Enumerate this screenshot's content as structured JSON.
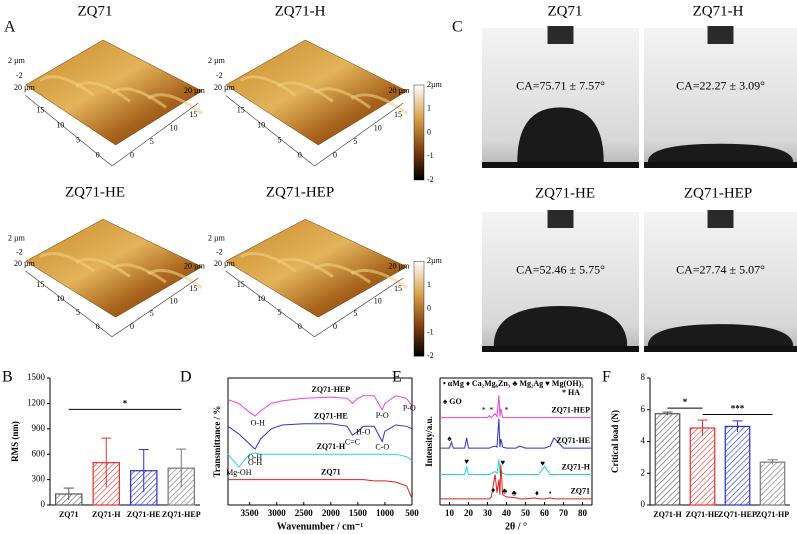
{
  "panels": {
    "A": {
      "letter": "A",
      "images": [
        {
          "title": "ZQ71"
        },
        {
          "title": "ZQ71-H"
        },
        {
          "title": "ZQ71-HE"
        },
        {
          "title": "ZQ71-HEP"
        }
      ],
      "z_top": "2 µm",
      "z_bottom": "-2",
      "x_end": "20 µm",
      "ticks": [
        "15",
        "10",
        "5",
        "0"
      ],
      "colorbar_ticks": [
        "2µm",
        "1",
        "0",
        "-1",
        "-2"
      ]
    },
    "C": {
      "letter": "C",
      "images": [
        {
          "title": "ZQ71",
          "ca": "CA=75.71 ± 7.57°"
        },
        {
          "title": "ZQ71-H",
          "ca": "CA=22.27 ± 3.09°"
        },
        {
          "title": "ZQ71-HE",
          "ca": "CA=52.46 ± 5.75°"
        },
        {
          "title": "ZQ71-HEP",
          "ca": "CA=27.74 ± 5.07°"
        }
      ]
    }
  },
  "chart_data": [
    {
      "type": "bar",
      "panel": "B",
      "ylabel": "RMS (nm)",
      "categories": [
        "ZQ71",
        "ZQ71-H",
        "ZQ71-HE",
        "ZQ71-HEP"
      ],
      "values": [
        130,
        500,
        405,
        435
      ],
      "errors": [
        70,
        290,
        250,
        225
      ],
      "colors": [
        "#555555",
        "#e8302a",
        "#2430d8",
        "#777777"
      ],
      "ylim": [
        0,
        1500
      ],
      "yticks": [
        0,
        300,
        600,
        900,
        1200,
        1500
      ],
      "significance": [
        {
          "from": 0,
          "to": 3,
          "y": 1130,
          "label": "*"
        }
      ]
    },
    {
      "type": "line",
      "panel": "D",
      "ylabel": "Transmittance / %",
      "xlabel": "Wavenumber / cm⁻¹",
      "x": [
        3900,
        3700,
        3500,
        3400,
        3300,
        3100,
        2900,
        2500,
        2000,
        1700,
        1600,
        1500,
        1400,
        1200,
        1050,
        1000,
        800,
        600,
        500
      ],
      "series": [
        {
          "name": "ZQ71-HEP",
          "color": "#f040e0",
          "values": [
            83,
            80,
            73,
            70,
            74,
            80,
            82,
            84,
            85,
            84,
            80,
            84,
            86,
            86,
            75,
            80,
            86,
            84,
            78
          ]
        },
        {
          "name": "ZQ71-HE",
          "color": "#2b35c8",
          "values": [
            62,
            56,
            48,
            44,
            52,
            60,
            63,
            64,
            64,
            62,
            55,
            58,
            62,
            62,
            50,
            58,
            63,
            62,
            60
          ]
        },
        {
          "name": "ZQ71-H",
          "color": "#22d4e8",
          "values": [
            40,
            30,
            40,
            41,
            40,
            40,
            40,
            40,
            40,
            40,
            40,
            40,
            40,
            40,
            40,
            40,
            40,
            38,
            35
          ]
        },
        {
          "name": "ZQ71",
          "color": "#e02020",
          "values": [
            20,
            20,
            20,
            20,
            20,
            20,
            20,
            20,
            20,
            20,
            20,
            20,
            20,
            19,
            19,
            19,
            18,
            15,
            5
          ]
        }
      ],
      "xlim": [
        3900,
        500
      ],
      "xticks": [
        3500,
        3000,
        2500,
        2000,
        1500,
        1000,
        500
      ],
      "ylim": [
        0,
        100
      ],
      "annotations": [
        {
          "text": "O-H",
          "x": 3350,
          "y": 64
        },
        {
          "text": "O-H",
          "x": 3400,
          "y": 37
        },
        {
          "text": "O-H",
          "x": 3400,
          "y": 33
        },
        {
          "text": "Mg-OH",
          "x": 3700,
          "y": 25
        },
        {
          "text": "C=C",
          "x": 1600,
          "y": 49
        },
        {
          "text": "H-O",
          "x": 1400,
          "y": 57
        },
        {
          "text": "C-O",
          "x": 1050,
          "y": 45
        },
        {
          "text": "P-O",
          "x": 1050,
          "y": 70
        },
        {
          "text": "P-O",
          "x": 550,
          "y": 76
        }
      ]
    },
    {
      "type": "line",
      "panel": "E",
      "ylabel": "Intensity/a.u.",
      "xlabel": "2θ / °",
      "x": [
        5,
        10,
        11,
        12,
        18,
        19,
        20,
        25,
        30,
        31,
        32,
        34,
        35,
        36,
        36.5,
        37,
        38,
        40,
        45,
        47,
        50,
        55,
        57,
        60,
        63,
        65,
        70,
        75,
        80,
        85
      ],
      "series": [
        {
          "name": "ZQ71-HEP",
          "color": "#f040e0",
          "values": [
            86,
            86,
            86,
            86,
            86,
            86,
            86,
            86,
            86,
            88,
            86,
            90,
            87,
            108,
            87,
            95,
            86,
            86,
            86,
            86,
            86,
            86,
            86,
            86,
            86,
            86,
            86,
            86,
            86,
            86
          ]
        },
        {
          "name": "ZQ71-HE",
          "color": "#2b35c8",
          "values": [
            56,
            56,
            62,
            56,
            56,
            66,
            56,
            56,
            56,
            56,
            57,
            58,
            57,
            85,
            57,
            65,
            57,
            56,
            56,
            58,
            56,
            56,
            56,
            56,
            58,
            66,
            56,
            56,
            56,
            56
          ]
        },
        {
          "name": "ZQ71-H",
          "color": "#22d4e8",
          "values": [
            30,
            30,
            30,
            30,
            30,
            38,
            30,
            30,
            30,
            30,
            31,
            33,
            31,
            45,
            31,
            35,
            31,
            30,
            30,
            30,
            30,
            30,
            30,
            38,
            30,
            30,
            30,
            30,
            30,
            30
          ]
        },
        {
          "name": "ZQ71",
          "color": "#e02020",
          "values": [
            6,
            6,
            6,
            6,
            6,
            6,
            6,
            6,
            6,
            6,
            8,
            30,
            12,
            25,
            10,
            40,
            10,
            8,
            7,
            6,
            6,
            7,
            6,
            6,
            7,
            6,
            6,
            6,
            6,
            6
          ]
        }
      ],
      "xlim": [
        5,
        85
      ],
      "xticks": [
        10,
        20,
        30,
        40,
        50,
        60,
        70,
        80
      ],
      "ylim": [
        0,
        125
      ],
      "legend_lines": [
        "• αMg ♦ Ca₂Mg₆Zn₃ ♣ Mg₂Ag ♥ Mg(OH)₂",
        "* HA",
        "♠ GO"
      ],
      "annotations": [
        {
          "text": "♠",
          "x": 10,
          "y": 65
        },
        {
          "text": "*",
          "x": 28,
          "y": 93
        },
        {
          "text": "*",
          "x": 32,
          "y": 93
        },
        {
          "text": "*",
          "x": 40,
          "y": 93
        },
        {
          "text": "♥",
          "x": 19,
          "y": 42
        },
        {
          "text": "♥",
          "x": 38,
          "y": 41
        },
        {
          "text": "♥",
          "x": 59,
          "y": 40
        },
        {
          "text": "♦",
          "x": 33,
          "y": 14
        },
        {
          "text": "♣",
          "x": 39,
          "y": 13
        },
        {
          "text": "♣",
          "x": 44,
          "y": 11
        },
        {
          "text": "♦",
          "x": 56,
          "y": 11
        },
        {
          "text": "•",
          "x": 63,
          "y": 11
        }
      ]
    },
    {
      "type": "bar",
      "panel": "F",
      "ylabel": "Critical load (N)",
      "categories": [
        "ZQ71-H",
        "ZQ71-HE",
        "ZQ71-HEP",
        "ZQ71-HP"
      ],
      "values": [
        5.75,
        4.85,
        4.95,
        2.7
      ],
      "errors": [
        0.1,
        0.5,
        0.35,
        0.15
      ],
      "colors": [
        "#555555",
        "#e8302a",
        "#2430d8",
        "#777777"
      ],
      "ylim": [
        0,
        8
      ],
      "yticks": [
        0,
        2,
        4,
        6,
        8
      ],
      "significance": [
        {
          "from": 0,
          "to": 1,
          "y": 6.1,
          "label": "*"
        },
        {
          "from": 1,
          "to": 3,
          "y": 5.7,
          "label": "***"
        }
      ]
    }
  ]
}
